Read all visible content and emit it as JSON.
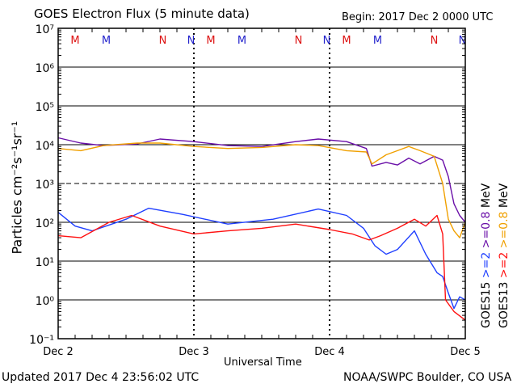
{
  "header": {
    "title": "GOES Electron Flux (5 minute data)",
    "begin": "Begin: 2017 Dec 2 0000 UTC"
  },
  "footer": {
    "updated": "Updated 2017 Dec  4 23:56:02 UTC",
    "source": "NOAA/SWPC Boulder, CO USA"
  },
  "colors": {
    "goes15_ge2": "#1f3fff",
    "goes13_ge2": "#ff1010",
    "goes15_ge08": "#6a0fa8",
    "goes13_ge08": "#f0a000",
    "marker_m": "#dd1111",
    "marker_m2": "#2222cc"
  },
  "chart_data": {
    "type": "line",
    "title": "GOES Electron Flux (5 minute data)",
    "xlabel": "Universal Time",
    "ylabel": "Particles cm⁻²s⁻¹sr⁻¹",
    "yscale": "log",
    "ylim": [
      0.1,
      10000000
    ],
    "xlim": [
      "2017-12-02 00:00",
      "2017-12-05 00:00"
    ],
    "x_ticks": [
      "Dec 2",
      "Dec 3",
      "Dec 4",
      "Dec 5"
    ],
    "y_ticks": [
      "10⁻¹",
      "10⁰",
      "10¹",
      "10²",
      "10³",
      "10⁴",
      "10⁵",
      "10⁶",
      "10⁷"
    ],
    "y_tick_values": [
      0.1,
      1,
      10,
      100,
      1000,
      10000,
      100000,
      1000000,
      10000000
    ],
    "grid": "horizontal at each decade (dashed at 10^3)",
    "legend": [
      {
        "text": "GOES15",
        "color": "#000000"
      },
      {
        "text": "GOES13",
        "color": "#000000"
      },
      {
        "text": ">=2",
        "color": "#1f3fff"
      },
      {
        "text": ">=2",
        "color": "#ff1010"
      },
      {
        "text": ">=0.8",
        "color": "#6a0fa8"
      },
      {
        "text": ">=0.8",
        "color": "#f0a000"
      },
      {
        "text": "MeV",
        "color": "#000000"
      },
      {
        "text": "MeV",
        "color": "#000000"
      }
    ],
    "markers": [
      {
        "label": "M",
        "time": "2017-12-02 03:00",
        "color": "#dd1111"
      },
      {
        "label": "M",
        "time": "2017-12-02 08:30",
        "color": "#2222cc"
      },
      {
        "label": "N",
        "time": "2017-12-02 18:30",
        "color": "#dd1111"
      },
      {
        "label": "N",
        "time": "2017-12-02 23:30",
        "color": "#2222cc"
      },
      {
        "label": "M",
        "time": "2017-12-03 03:00",
        "color": "#dd1111"
      },
      {
        "label": "M",
        "time": "2017-12-03 08:30",
        "color": "#2222cc"
      },
      {
        "label": "N",
        "time": "2017-12-03 18:30",
        "color": "#dd1111"
      },
      {
        "label": "N",
        "time": "2017-12-03 23:30",
        "color": "#2222cc"
      },
      {
        "label": "M",
        "time": "2017-12-04 03:00",
        "color": "#dd1111"
      },
      {
        "label": "M",
        "time": "2017-12-04 08:30",
        "color": "#2222cc"
      },
      {
        "label": "N",
        "time": "2017-12-04 18:30",
        "color": "#dd1111"
      },
      {
        "label": "N",
        "time": "2017-12-04 23:30",
        "color": "#2222cc"
      }
    ],
    "series": [
      {
        "color": "#6a0fa8",
        "x": [
          "2017-12-02 00:00",
          "2017-12-02 04:00",
          "2017-12-02 08:00",
          "2017-12-02 14:00",
          "2017-12-02 18:00",
          "2017-12-03 00:00",
          "2017-12-03 06:00",
          "2017-12-03 12:00",
          "2017-12-03 18:00",
          "2017-12-03 22:00",
          "2017-12-04 03:00",
          "2017-12-04 06:30",
          "2017-12-04 07:30",
          "2017-12-04 10:00",
          "2017-12-04 12:00",
          "2017-12-04 14:00",
          "2017-12-04 16:00",
          "2017-12-04 18:30",
          "2017-12-04 20:00",
          "2017-12-04 21:00",
          "2017-12-04 22:00",
          "2017-12-04 23:00",
          "2017-12-05 00:00"
        ],
        "y": [
          15000,
          11000,
          9500,
          10500,
          14000,
          12000,
          9500,
          9000,
          12000,
          14000,
          12000,
          8000,
          2800,
          3500,
          3000,
          4500,
          3200,
          5000,
          4000,
          1500,
          300,
          150,
          100
        ]
      },
      {
        "color": "#f0a000",
        "x": [
          "2017-12-02 00:00",
          "2017-12-02 04:00",
          "2017-12-02 08:00",
          "2017-12-02 14:00",
          "2017-12-02 18:00",
          "2017-12-03 00:00",
          "2017-12-03 06:00",
          "2017-12-03 12:00",
          "2017-12-03 18:00",
          "2017-12-03 22:00",
          "2017-12-04 03:00",
          "2017-12-04 06:30",
          "2017-12-04 07:30",
          "2017-12-04 10:00",
          "2017-12-04 12:00",
          "2017-12-04 14:00",
          "2017-12-04 16:00",
          "2017-12-04 18:30",
          "2017-12-04 20:00",
          "2017-12-04 21:00",
          "2017-12-04 22:00",
          "2017-12-04 23:00",
          "2017-12-05 00:00"
        ],
        "y": [
          8000,
          7000,
          9500,
          11000,
          11000,
          9000,
          8000,
          8500,
          10000,
          9500,
          7000,
          6500,
          3200,
          5500,
          7000,
          9000,
          7000,
          5000,
          1000,
          120,
          60,
          40,
          100
        ]
      },
      {
        "color": "#1f3fff",
        "x": [
          "2017-12-02 00:00",
          "2017-12-02 03:00",
          "2017-12-02 06:00",
          "2017-12-02 12:00",
          "2017-12-02 16:00",
          "2017-12-02 22:00",
          "2017-12-03 06:00",
          "2017-12-03 14:00",
          "2017-12-03 22:00",
          "2017-12-04 03:00",
          "2017-12-04 06:00",
          "2017-12-04 08:00",
          "2017-12-04 10:00",
          "2017-12-04 12:00",
          "2017-12-04 15:00",
          "2017-12-04 17:00",
          "2017-12-04 19:00",
          "2017-12-04 20:00",
          "2017-12-04 21:00",
          "2017-12-04 22:00",
          "2017-12-04 23:00",
          "2017-12-05 00:00"
        ],
        "y": [
          180,
          80,
          60,
          120,
          230,
          160,
          90,
          120,
          220,
          150,
          70,
          25,
          15,
          20,
          60,
          15,
          5,
          4,
          1.5,
          0.6,
          1.2,
          1.0
        ]
      },
      {
        "color": "#ff1010",
        "x": [
          "2017-12-02 00:00",
          "2017-12-02 04:00",
          "2017-12-02 09:00",
          "2017-12-02 13:00",
          "2017-12-02 18:00",
          "2017-12-03 00:00",
          "2017-12-03 06:00",
          "2017-12-03 12:00",
          "2017-12-03 18:00",
          "2017-12-04 00:00",
          "2017-12-04 04:00",
          "2017-12-04 07:00",
          "2017-12-04 09:00",
          "2017-12-04 12:00",
          "2017-12-04 15:00",
          "2017-12-04 17:00",
          "2017-12-04 19:00",
          "2017-12-04 20:00",
          "2017-12-04 20:30",
          "2017-12-04 22:00",
          "2017-12-05 00:00"
        ],
        "y": [
          45,
          40,
          100,
          150,
          80,
          50,
          60,
          70,
          90,
          65,
          50,
          35,
          45,
          70,
          120,
          80,
          150,
          50,
          1,
          0.5,
          0.3
        ]
      }
    ]
  }
}
